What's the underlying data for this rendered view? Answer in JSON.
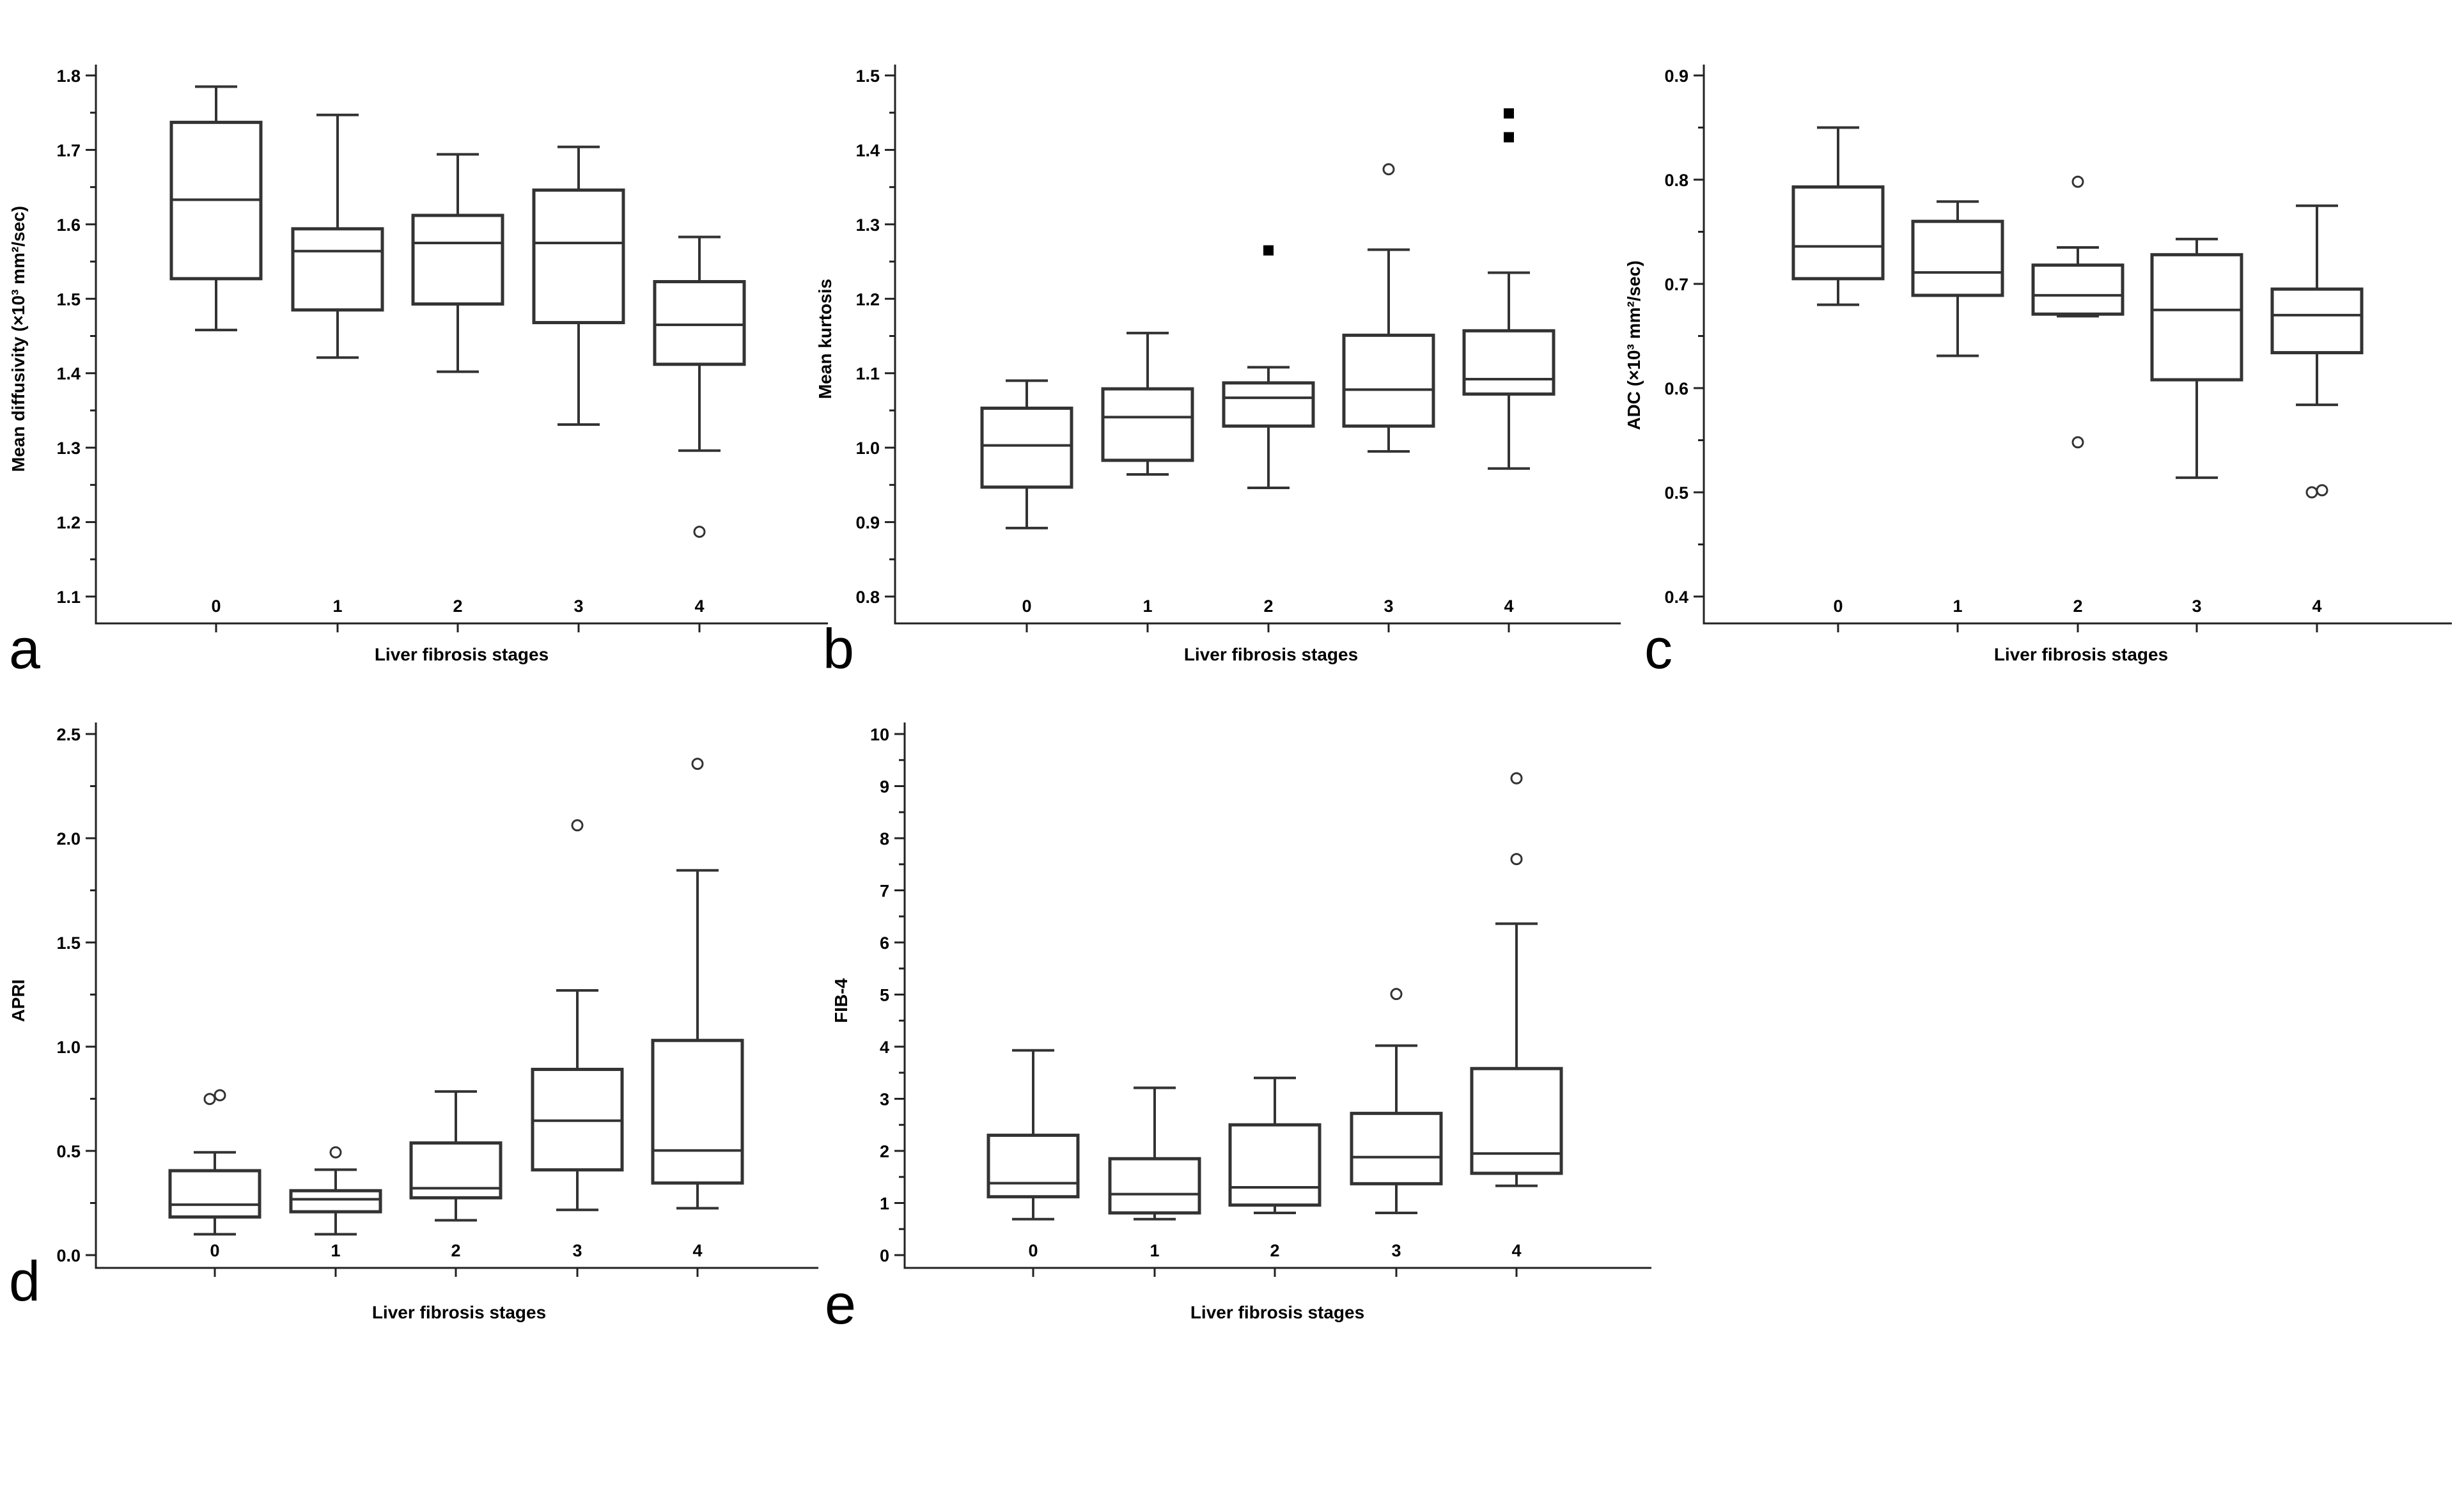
{
  "chart_data": [
    {
      "panel": "a",
      "type": "box",
      "xlabel": "Liver fibrosis stages",
      "ylabel": "Mean diffusivity (×10³ mm²/sec)",
      "categories": [
        "0",
        "1",
        "2",
        "3",
        "4"
      ],
      "ylim": [
        1.1,
        1.8
      ],
      "yticks": [
        "1.1",
        "1.2",
        "1.3",
        "1.4",
        "1.5",
        "1.6",
        "1.7",
        "1.8"
      ],
      "boxes": [
        {
          "min": 1.458,
          "q1": 1.527,
          "median": 1.633,
          "q3": 1.737,
          "max": 1.785,
          "outliers": [],
          "far_outliers": []
        },
        {
          "min": 1.421,
          "q1": 1.485,
          "median": 1.564,
          "q3": 1.594,
          "max": 1.747,
          "outliers": [],
          "far_outliers": []
        },
        {
          "min": 1.402,
          "q1": 1.493,
          "median": 1.575,
          "q3": 1.612,
          "max": 1.694,
          "outliers": [],
          "far_outliers": []
        },
        {
          "min": 1.331,
          "q1": 1.468,
          "median": 1.575,
          "q3": 1.646,
          "max": 1.704,
          "outliers": [],
          "far_outliers": []
        },
        {
          "min": 1.296,
          "q1": 1.412,
          "median": 1.465,
          "q3": 1.523,
          "max": 1.583,
          "outliers": [
            1.187
          ],
          "far_outliers": []
        }
      ]
    },
    {
      "panel": "b",
      "type": "box",
      "xlabel": "Liver fibrosis stages",
      "ylabel": "Mean kurtosis",
      "categories": [
        "0",
        "1",
        "2",
        "3",
        "4"
      ],
      "ylim": [
        0.8,
        1.5
      ],
      "yticks": [
        "0.8",
        "0.9",
        "1.0",
        "1.1",
        "1.2",
        "1.3",
        "1.4",
        "1.5"
      ],
      "boxes": [
        {
          "min": 0.892,
          "q1": 0.947,
          "median": 1.003,
          "q3": 1.053,
          "max": 1.09,
          "outliers": [],
          "far_outliers": []
        },
        {
          "min": 0.964,
          "q1": 0.983,
          "median": 1.041,
          "q3": 1.079,
          "max": 1.154,
          "outliers": [],
          "far_outliers": []
        },
        {
          "min": 0.946,
          "q1": 1.029,
          "median": 1.067,
          "q3": 1.087,
          "max": 1.108,
          "outliers": [],
          "far_outliers": [
            1.265
          ]
        },
        {
          "min": 0.995,
          "q1": 1.029,
          "median": 1.078,
          "q3": 1.151,
          "max": 1.266,
          "outliers": [
            1.374
          ],
          "far_outliers": []
        },
        {
          "min": 0.972,
          "q1": 1.072,
          "median": 1.092,
          "q3": 1.157,
          "max": 1.235,
          "outliers": [],
          "far_outliers": [
            1.417,
            1.449
          ]
        }
      ]
    },
    {
      "panel": "c",
      "type": "box",
      "xlabel": "Liver fibrosis stages",
      "ylabel": "ADC (×10³ mm²/sec)",
      "categories": [
        "0",
        "1",
        "2",
        "3",
        "4"
      ],
      "ylim": [
        0.4,
        0.9
      ],
      "yticks": [
        "0.4",
        "0.5",
        "0.6",
        "0.7",
        "0.8",
        "0.9"
      ],
      "boxes": [
        {
          "min": 0.68,
          "q1": 0.705,
          "median": 0.736,
          "q3": 0.793,
          "max": 0.85,
          "outliers": [],
          "far_outliers": []
        },
        {
          "min": 0.631,
          "q1": 0.689,
          "median": 0.711,
          "q3": 0.76,
          "max": 0.779,
          "outliers": [],
          "far_outliers": []
        },
        {
          "min": 0.669,
          "q1": 0.671,
          "median": 0.689,
          "q3": 0.718,
          "max": 0.735,
          "outliers": [
            0.548,
            0.798
          ],
          "far_outliers": []
        },
        {
          "min": 0.514,
          "q1": 0.608,
          "median": 0.675,
          "q3": 0.728,
          "max": 0.743,
          "outliers": [],
          "far_outliers": []
        },
        {
          "min": 0.584,
          "q1": 0.634,
          "median": 0.67,
          "q3": 0.695,
          "max": 0.775,
          "outliers": [
            0.5,
            0.502
          ],
          "far_outliers": []
        }
      ]
    },
    {
      "panel": "d",
      "type": "box",
      "xlabel": "Liver fibrosis stages",
      "ylabel": "APRI",
      "categories": [
        "0",
        "1",
        "2",
        "3",
        "4"
      ],
      "ylim": [
        0.0,
        2.5
      ],
      "yticks": [
        "0.0",
        "0.5",
        "1.0",
        "1.5",
        "2.0",
        "2.5"
      ],
      "boxes": [
        {
          "min": 0.1,
          "q1": 0.183,
          "median": 0.242,
          "q3": 0.405,
          "max": 0.493,
          "outliers": [
            0.749,
            0.767
          ],
          "far_outliers": []
        },
        {
          "min": 0.1,
          "q1": 0.208,
          "median": 0.268,
          "q3": 0.309,
          "max": 0.41,
          "outliers": [
            0.493
          ],
          "far_outliers": []
        },
        {
          "min": 0.167,
          "q1": 0.275,
          "median": 0.321,
          "q3": 0.538,
          "max": 0.785,
          "outliers": [],
          "far_outliers": []
        },
        {
          "min": 0.217,
          "q1": 0.409,
          "median": 0.645,
          "q3": 0.891,
          "max": 1.27,
          "outliers": [
            2.062
          ],
          "far_outliers": []
        },
        {
          "min": 0.225,
          "q1": 0.346,
          "median": 0.502,
          "q3": 1.03,
          "max": 1.846,
          "outliers": [
            2.357
          ],
          "far_outliers": []
        }
      ]
    },
    {
      "panel": "e",
      "type": "box",
      "xlabel": "Liver fibrosis stages",
      "ylabel": "FIB-4",
      "categories": [
        "0",
        "1",
        "2",
        "3",
        "4"
      ],
      "ylim": [
        0,
        10
      ],
      "yticks": [
        "0",
        "1",
        "2",
        "3",
        "4",
        "5",
        "6",
        "7",
        "8",
        "9",
        "10"
      ],
      "boxes": [
        {
          "min": 0.69,
          "q1": 1.12,
          "median": 1.38,
          "q3": 2.3,
          "max": 3.93,
          "outliers": [],
          "far_outliers": []
        },
        {
          "min": 0.69,
          "q1": 0.81,
          "median": 1.17,
          "q3": 1.85,
          "max": 3.21,
          "outliers": [],
          "far_outliers": []
        },
        {
          "min": 0.81,
          "q1": 0.96,
          "median": 1.3,
          "q3": 2.5,
          "max": 3.4,
          "outliers": [],
          "far_outliers": []
        },
        {
          "min": 0.81,
          "q1": 1.37,
          "median": 1.88,
          "q3": 2.72,
          "max": 4.02,
          "outliers": [
            5.01
          ],
          "far_outliers": []
        },
        {
          "min": 1.33,
          "q1": 1.57,
          "median": 1.95,
          "q3": 3.58,
          "max": 6.36,
          "outliers": [
            7.6,
            9.15
          ],
          "far_outliers": []
        }
      ]
    }
  ]
}
